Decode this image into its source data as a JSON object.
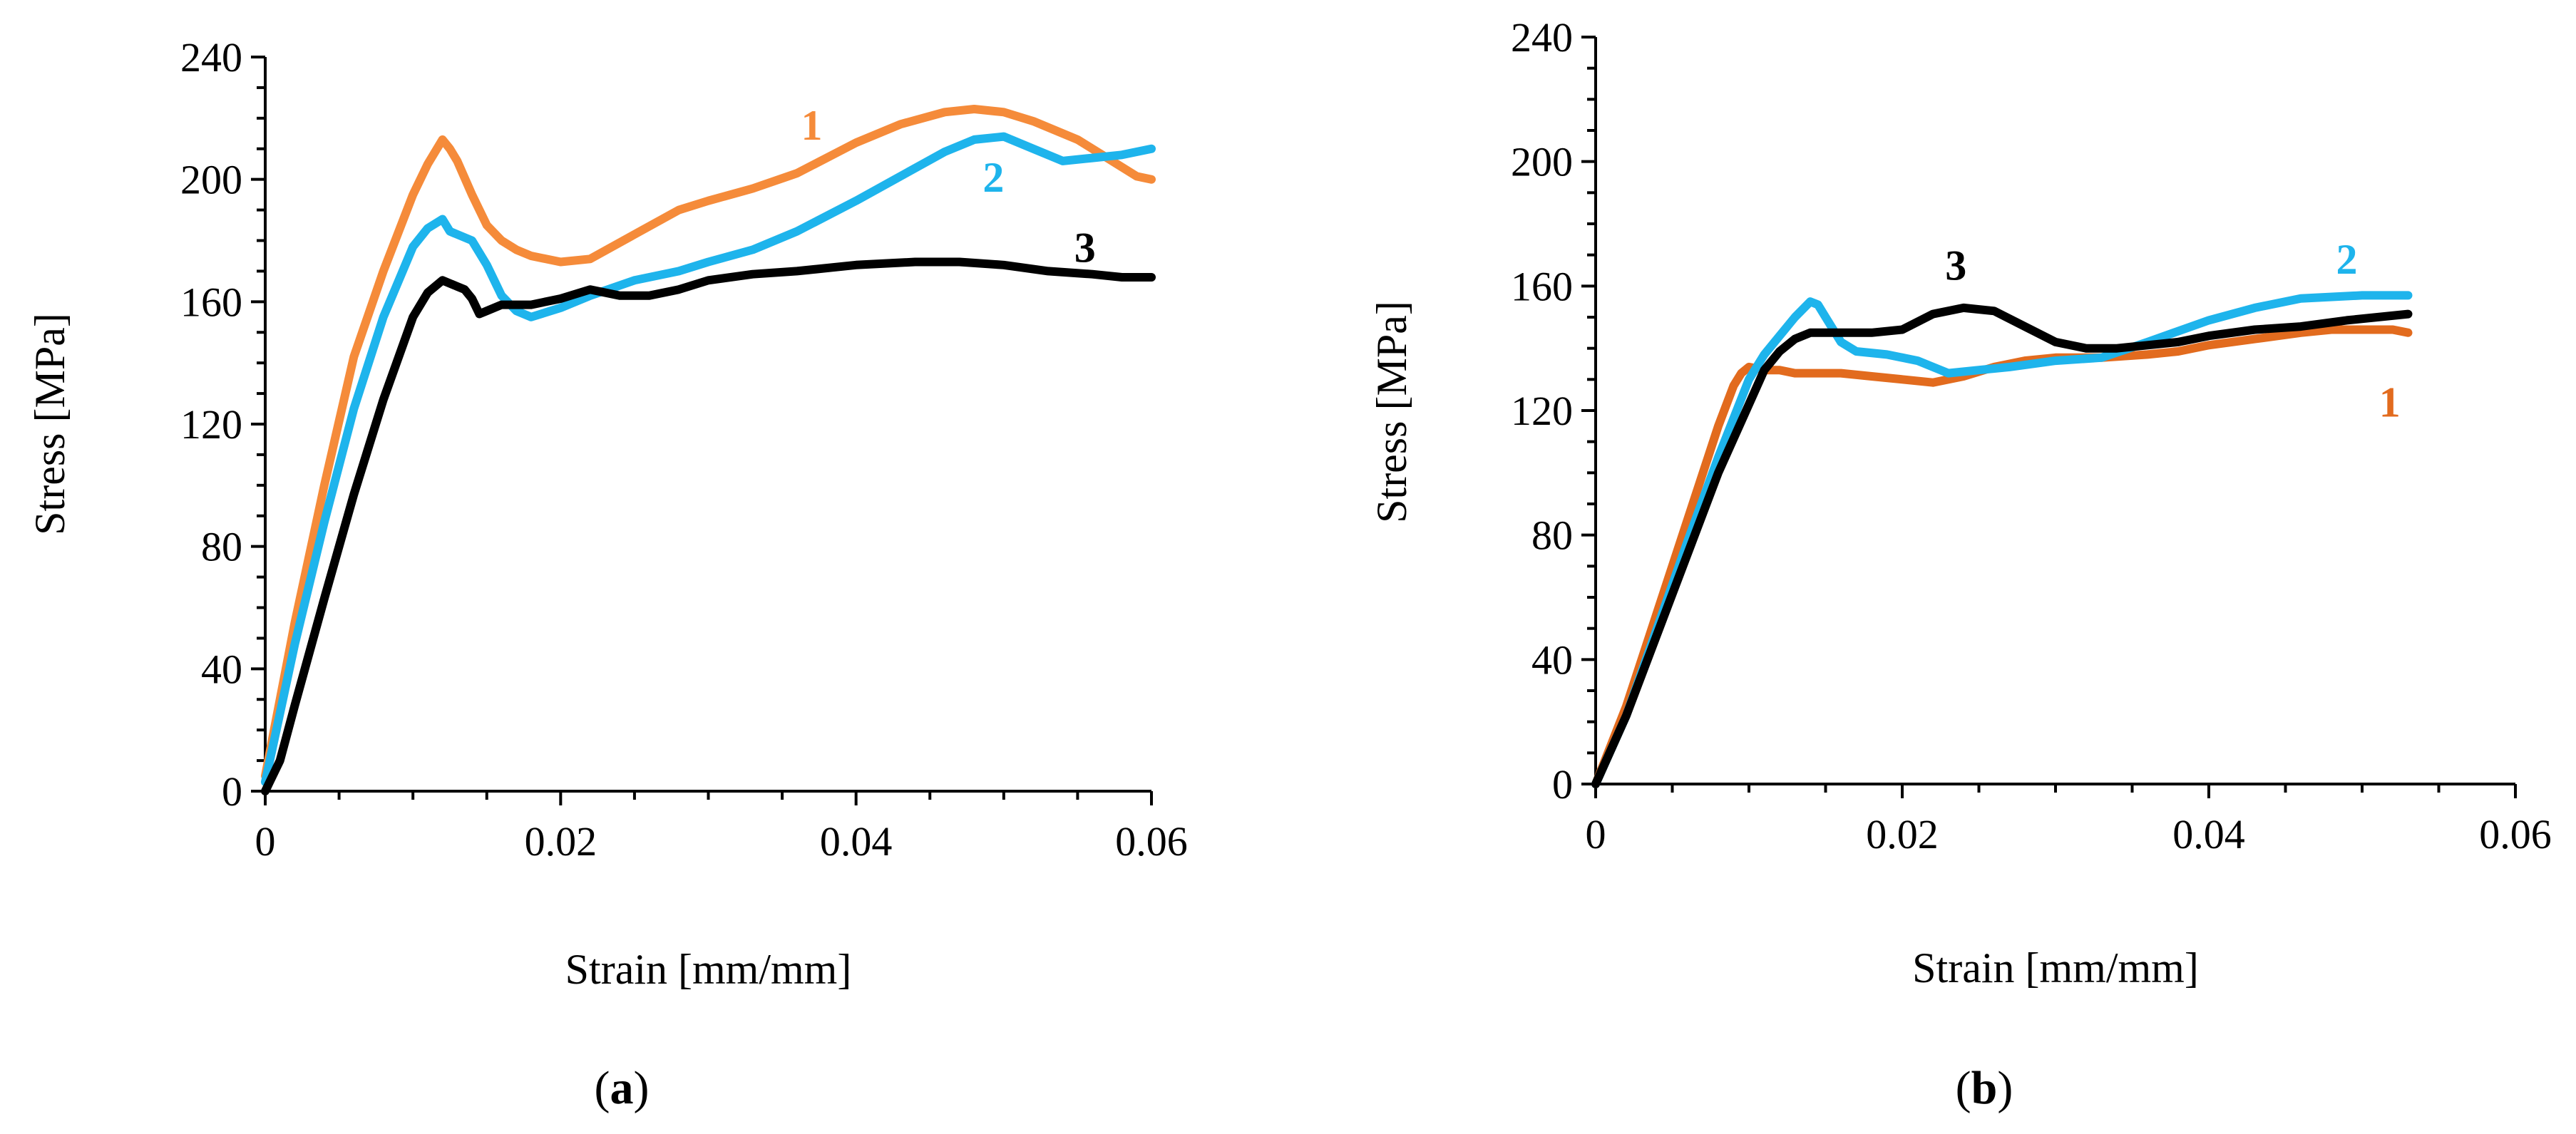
{
  "chart_data": [
    {
      "panel": "a",
      "type": "line",
      "caption_open": "(",
      "caption_letter": "a",
      "caption_close": ")",
      "xlabel": "Strain [mm/mm]",
      "ylabel": "Stress [MPa]",
      "xlim": [
        0,
        0.06
      ],
      "ylim": [
        0,
        240
      ],
      "xticks": [
        0,
        0.02,
        0.04,
        0.06
      ],
      "xtick_labels": [
        "0",
        "0.02",
        "0.04",
        "0.06"
      ],
      "yticks": [
        0,
        40,
        80,
        120,
        160,
        200,
        240
      ],
      "ytick_labels": [
        "0",
        "40",
        "80",
        "120",
        "160",
        "200",
        "240"
      ],
      "grid": false,
      "series": [
        {
          "name": "1",
          "color": "#F58B3A",
          "label_at": [
            0.037,
            213
          ],
          "points": [
            [
              0,
              5
            ],
            [
              0.002,
              55
            ],
            [
              0.004,
              100
            ],
            [
              0.006,
              142
            ],
            [
              0.008,
              170
            ],
            [
              0.01,
              195
            ],
            [
              0.011,
              205
            ],
            [
              0.012,
              213
            ],
            [
              0.0125,
              210
            ],
            [
              0.013,
              206
            ],
            [
              0.014,
              195
            ],
            [
              0.015,
              185
            ],
            [
              0.016,
              180
            ],
            [
              0.017,
              177
            ],
            [
              0.018,
              175
            ],
            [
              0.02,
              173
            ],
            [
              0.022,
              174
            ],
            [
              0.025,
              182
            ],
            [
              0.028,
              190
            ],
            [
              0.03,
              193
            ],
            [
              0.033,
              197
            ],
            [
              0.036,
              202
            ],
            [
              0.04,
              212
            ],
            [
              0.043,
              218
            ],
            [
              0.046,
              222
            ],
            [
              0.048,
              223
            ],
            [
              0.05,
              222
            ],
            [
              0.052,
              219
            ],
            [
              0.055,
              213
            ],
            [
              0.057,
              207
            ],
            [
              0.059,
              201
            ],
            [
              0.06,
              200
            ]
          ]
        },
        {
          "name": "2",
          "color": "#1EB4EC",
          "label_at": [
            0.0493,
            196
          ],
          "points": [
            [
              0,
              3
            ],
            [
              0.002,
              48
            ],
            [
              0.004,
              88
            ],
            [
              0.006,
              125
            ],
            [
              0.008,
              155
            ],
            [
              0.01,
              178
            ],
            [
              0.011,
              184
            ],
            [
              0.012,
              187
            ],
            [
              0.0125,
              183
            ],
            [
              0.013,
              182
            ],
            [
              0.014,
              180
            ],
            [
              0.015,
              172
            ],
            [
              0.016,
              162
            ],
            [
              0.017,
              157
            ],
            [
              0.018,
              155
            ],
            [
              0.02,
              158
            ],
            [
              0.022,
              162
            ],
            [
              0.025,
              167
            ],
            [
              0.028,
              170
            ],
            [
              0.03,
              173
            ],
            [
              0.033,
              177
            ],
            [
              0.036,
              183
            ],
            [
              0.04,
              193
            ],
            [
              0.043,
              201
            ],
            [
              0.046,
              209
            ],
            [
              0.048,
              213
            ],
            [
              0.05,
              214
            ],
            [
              0.052,
              210
            ],
            [
              0.054,
              206
            ],
            [
              0.056,
              207
            ],
            [
              0.058,
              208
            ],
            [
              0.06,
              210
            ]
          ]
        },
        {
          "name": "3",
          "color": "#000000",
          "label_at": [
            0.0555,
            173
          ],
          "points": [
            [
              0,
              0
            ],
            [
              0.001,
              10
            ],
            [
              0.002,
              28
            ],
            [
              0.004,
              63
            ],
            [
              0.006,
              97
            ],
            [
              0.008,
              128
            ],
            [
              0.01,
              155
            ],
            [
              0.011,
              163
            ],
            [
              0.012,
              167
            ],
            [
              0.013,
              165
            ],
            [
              0.0135,
              164
            ],
            [
              0.014,
              161
            ],
            [
              0.0145,
              156
            ],
            [
              0.015,
              157
            ],
            [
              0.016,
              159
            ],
            [
              0.018,
              159
            ],
            [
              0.02,
              161
            ],
            [
              0.022,
              164
            ],
            [
              0.024,
              162
            ],
            [
              0.026,
              162
            ],
            [
              0.028,
              164
            ],
            [
              0.03,
              167
            ],
            [
              0.033,
              169
            ],
            [
              0.036,
              170
            ],
            [
              0.04,
              172
            ],
            [
              0.044,
              173
            ],
            [
              0.047,
              173
            ],
            [
              0.05,
              172
            ],
            [
              0.053,
              170
            ],
            [
              0.056,
              169
            ],
            [
              0.058,
              168
            ],
            [
              0.06,
              168
            ]
          ]
        }
      ]
    },
    {
      "panel": "b",
      "type": "line",
      "caption_open": "(",
      "caption_letter": "b",
      "caption_close": ")",
      "xlabel": "Strain [mm/mm]",
      "ylabel": "Stress [MPa]",
      "xlim": [
        0,
        0.06
      ],
      "ylim": [
        0,
        240
      ],
      "xticks": [
        0,
        0.02,
        0.04,
        0.06
      ],
      "xtick_labels": [
        "0",
        "0.02",
        "0.04",
        "0.06"
      ],
      "yticks": [
        0,
        40,
        80,
        120,
        160,
        200,
        240
      ],
      "ytick_labels": [
        "0",
        "40",
        "80",
        "120",
        "160",
        "200",
        "240"
      ],
      "grid": false,
      "series": [
        {
          "name": "1",
          "color": "#E26B1E",
          "label_at": [
            0.0518,
            118
          ],
          "points": [
            [
              0,
              0
            ],
            [
              0.002,
              25
            ],
            [
              0.004,
              55
            ],
            [
              0.006,
              85
            ],
            [
              0.008,
              115
            ],
            [
              0.009,
              128
            ],
            [
              0.0095,
              132
            ],
            [
              0.01,
              134
            ],
            [
              0.011,
              133
            ],
            [
              0.012,
              133
            ],
            [
              0.013,
              132
            ],
            [
              0.014,
              132
            ],
            [
              0.016,
              132
            ],
            [
              0.018,
              131
            ],
            [
              0.02,
              130
            ],
            [
              0.022,
              129
            ],
            [
              0.024,
              131
            ],
            [
              0.026,
              134
            ],
            [
              0.028,
              136
            ],
            [
              0.03,
              137
            ],
            [
              0.033,
              137
            ],
            [
              0.036,
              138
            ],
            [
              0.038,
              139
            ],
            [
              0.04,
              141
            ],
            [
              0.043,
              143
            ],
            [
              0.046,
              145
            ],
            [
              0.048,
              146
            ],
            [
              0.05,
              146
            ],
            [
              0.052,
              146
            ],
            [
              0.053,
              145
            ]
          ]
        },
        {
          "name": "2",
          "color": "#1EB4EC",
          "label_at": [
            0.049,
            164
          ],
          "points": [
            [
              0,
              0
            ],
            [
              0.002,
              22
            ],
            [
              0.004,
              50
            ],
            [
              0.006,
              78
            ],
            [
              0.008,
              105
            ],
            [
              0.01,
              130
            ],
            [
              0.011,
              138
            ],
            [
              0.012,
              144
            ],
            [
              0.013,
              150
            ],
            [
              0.014,
              155
            ],
            [
              0.0145,
              154
            ],
            [
              0.015,
              150
            ],
            [
              0.016,
              142
            ],
            [
              0.017,
              139
            ],
            [
              0.019,
              138
            ],
            [
              0.021,
              136
            ],
            [
              0.023,
              132
            ],
            [
              0.025,
              133
            ],
            [
              0.027,
              134
            ],
            [
              0.03,
              136
            ],
            [
              0.033,
              137
            ],
            [
              0.036,
              142
            ],
            [
              0.04,
              149
            ],
            [
              0.043,
              153
            ],
            [
              0.046,
              156
            ],
            [
              0.05,
              157
            ],
            [
              0.053,
              157
            ]
          ]
        },
        {
          "name": "3",
          "color": "#000000",
          "label_at": [
            0.0235,
            162
          ],
          "points": [
            [
              0,
              0
            ],
            [
              0.002,
              22
            ],
            [
              0.004,
              48
            ],
            [
              0.006,
              74
            ],
            [
              0.008,
              100
            ],
            [
              0.01,
              122
            ],
            [
              0.011,
              133
            ],
            [
              0.012,
              139
            ],
            [
              0.013,
              143
            ],
            [
              0.014,
              145
            ],
            [
              0.016,
              145
            ],
            [
              0.018,
              145
            ],
            [
              0.02,
              146
            ],
            [
              0.022,
              151
            ],
            [
              0.024,
              153
            ],
            [
              0.026,
              152
            ],
            [
              0.028,
              147
            ],
            [
              0.03,
              142
            ],
            [
              0.032,
              140
            ],
            [
              0.034,
              140
            ],
            [
              0.036,
              141
            ],
            [
              0.038,
              142
            ],
            [
              0.04,
              144
            ],
            [
              0.043,
              146
            ],
            [
              0.046,
              147
            ],
            [
              0.049,
              149
            ],
            [
              0.051,
              150
            ],
            [
              0.053,
              151
            ]
          ]
        }
      ]
    }
  ]
}
